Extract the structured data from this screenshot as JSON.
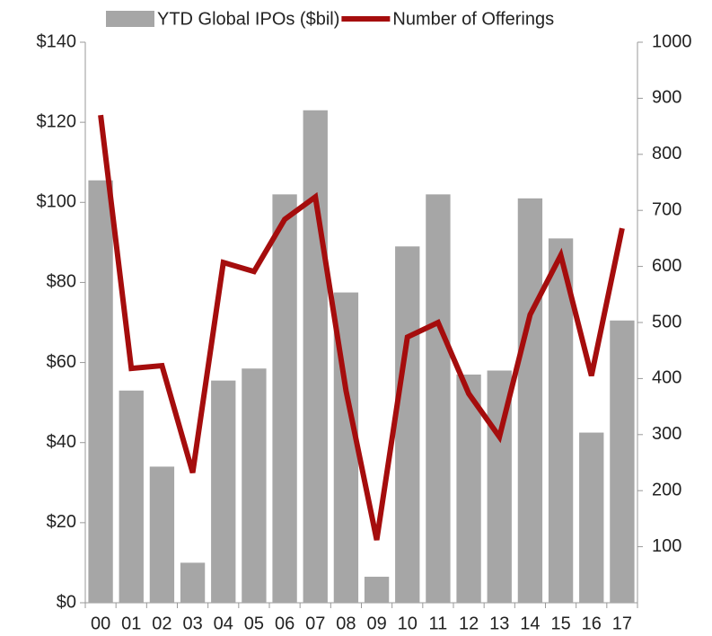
{
  "chart_data": {
    "type": "bar-line",
    "categories": [
      "00",
      "01",
      "02",
      "03",
      "04",
      "05",
      "06",
      "07",
      "08",
      "09",
      "10",
      "11",
      "12",
      "13",
      "14",
      "15",
      "16",
      "17"
    ],
    "series": [
      {
        "name": "YTD Global IPOs ($bil)",
        "type": "bar",
        "color": "#a6a6a6",
        "values": [
          105.5,
          53,
          34,
          10,
          55.5,
          58.5,
          102,
          123,
          77.5,
          6.5,
          89,
          102,
          57,
          58,
          101,
          91,
          42.5,
          70.5
        ]
      },
      {
        "name": "Number of Offerings",
        "type": "line",
        "axis": "y2",
        "color": "#a50d0d",
        "values": [
          870,
          418,
          423,
          232,
          607,
          591,
          684,
          724,
          378,
          112,
          474,
          500,
          373,
          296,
          514,
          620,
          405,
          668
        ]
      }
    ],
    "ylim": [
      0,
      140
    ],
    "yticks": [
      {
        "value": 0,
        "label": "$0"
      },
      {
        "value": 20,
        "label": "$20"
      },
      {
        "value": 40,
        "label": "$40"
      },
      {
        "value": 60,
        "label": "$60"
      },
      {
        "value": 80,
        "label": "$80"
      },
      {
        "value": 100,
        "label": "$100"
      },
      {
        "value": 120,
        "label": "$120"
      },
      {
        "value": 140,
        "label": "$140"
      }
    ],
    "y2lim": [
      0,
      1000
    ],
    "y2ticks": [
      100,
      200,
      300,
      400,
      500,
      600,
      700,
      800,
      900,
      1000
    ],
    "legend": "top"
  }
}
